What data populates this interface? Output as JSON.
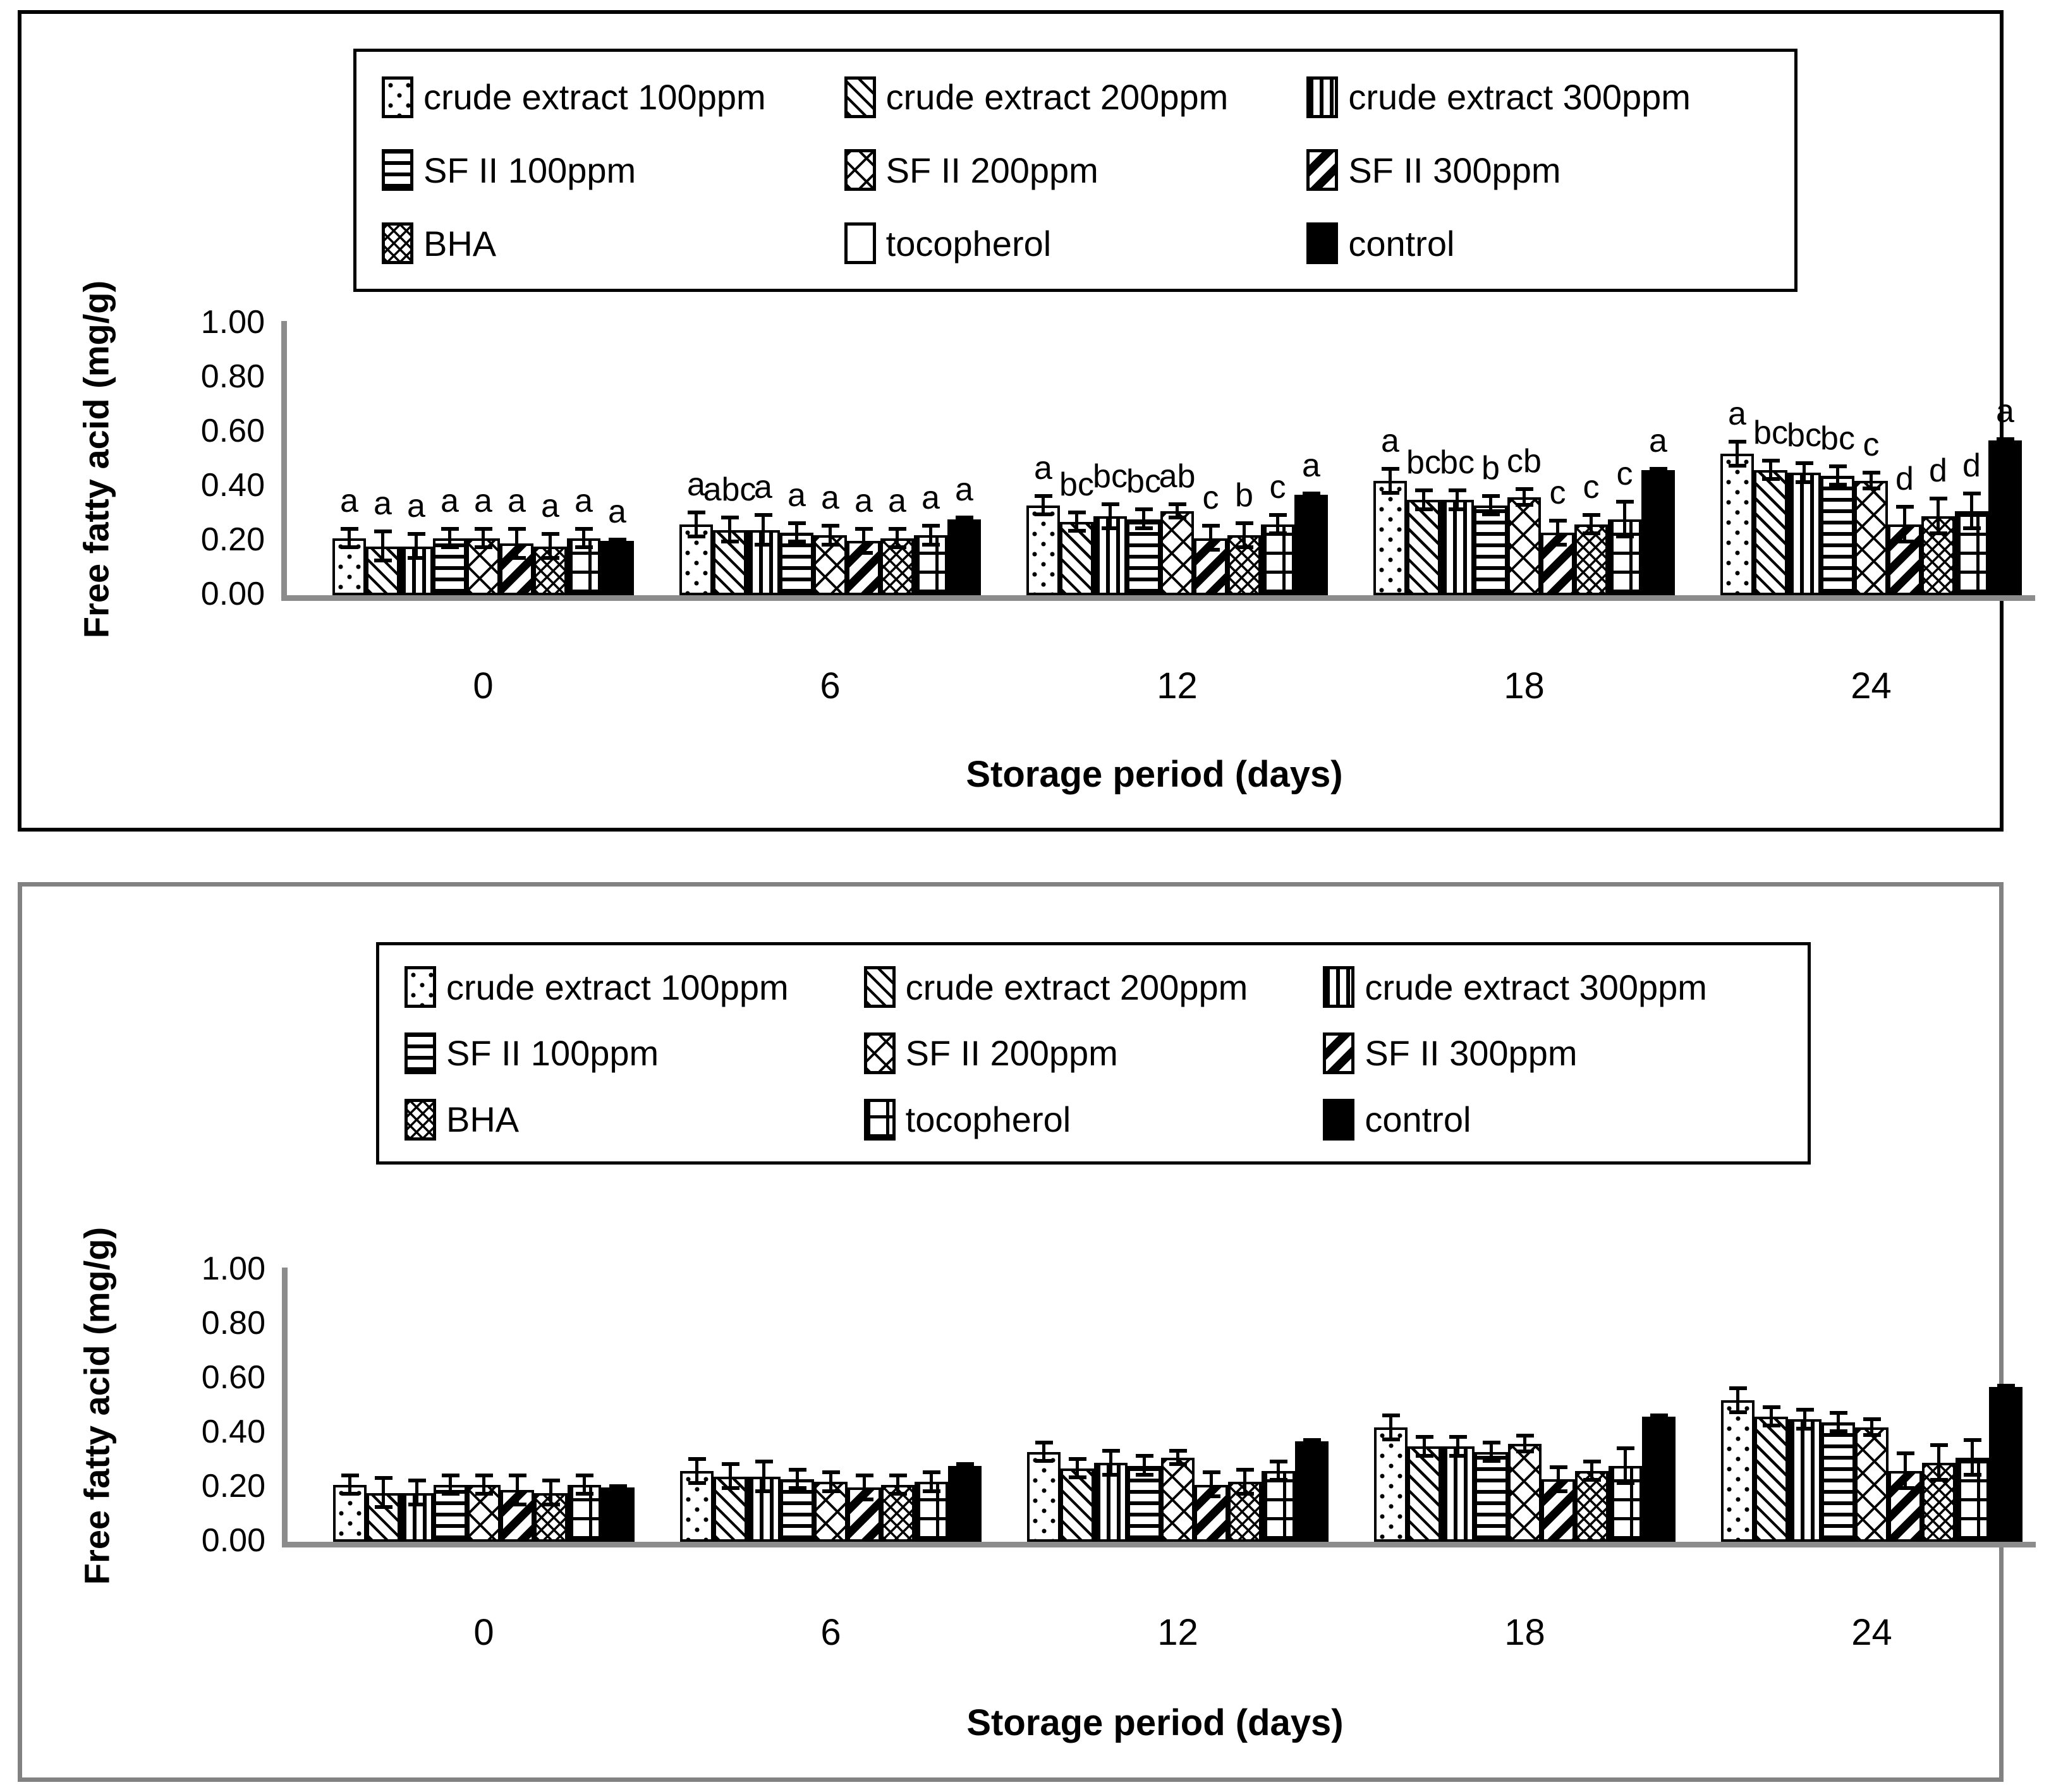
{
  "figure": {
    "description_visible_text_only": "Two stacked bar-chart panels of free fatty acid vs storage period",
    "accent_colors": {
      "bar_fill": "#000000",
      "axis_gray": "#8c8c8c",
      "panel2_border_gray": "#828282"
    }
  },
  "chart_data": [
    {
      "type": "bar",
      "panel": "top",
      "ylabel": "Free fatty acid (mg/g)",
      "xlabel": "Storage period (days)",
      "ylim": [
        0,
        1.0
      ],
      "yticks": [
        "0.00",
        "0.20",
        "0.40",
        "0.60",
        "0.80",
        "1.00"
      ],
      "categories": [
        "0",
        "6",
        "12",
        "18",
        "24"
      ],
      "grid": false,
      "legend_position": "top-inside-box",
      "significance_letters": true,
      "series": [
        {
          "name": "crude extract 100ppm",
          "pattern": "dots",
          "values": [
            0.21,
            0.26,
            0.33,
            0.42,
            0.52
          ],
          "errors": [
            0.04,
            0.05,
            0.04,
            0.05,
            0.05
          ],
          "letters": [
            "a",
            "a",
            "a",
            "a",
            "a"
          ]
        },
        {
          "name": "crude extract 200ppm",
          "pattern": "diag-down",
          "values": [
            0.18,
            0.24,
            0.27,
            0.35,
            0.46
          ],
          "errors": [
            0.06,
            0.05,
            0.04,
            0.04,
            0.04
          ],
          "letters": [
            "a",
            "abc",
            "bc",
            "bc",
            "bc"
          ]
        },
        {
          "name": "crude extract 300ppm",
          "pattern": "vertical",
          "values": [
            0.18,
            0.24,
            0.29,
            0.35,
            0.45
          ],
          "errors": [
            0.05,
            0.06,
            0.05,
            0.04,
            0.04
          ],
          "letters": [
            "a",
            "a",
            "bc",
            "bc",
            "bc"
          ]
        },
        {
          "name": "SF II 100ppm",
          "pattern": "horizontal",
          "values": [
            0.21,
            0.23,
            0.28,
            0.33,
            0.44
          ],
          "errors": [
            0.04,
            0.04,
            0.04,
            0.04,
            0.04
          ],
          "letters": [
            "a",
            "a",
            "bc",
            "b",
            "bc"
          ]
        },
        {
          "name": "SF II 200ppm",
          "pattern": "cross-wide",
          "values": [
            0.21,
            0.22,
            0.31,
            0.36,
            0.42
          ],
          "errors": [
            0.04,
            0.04,
            0.03,
            0.035,
            0.035
          ],
          "letters": [
            "a",
            "a",
            "ab",
            "cb",
            "c"
          ]
        },
        {
          "name": "SF II 300ppm",
          "pattern": "diag-bold",
          "values": [
            0.19,
            0.2,
            0.21,
            0.23,
            0.26
          ],
          "errors": [
            0.06,
            0.05,
            0.05,
            0.05,
            0.07
          ],
          "letters": [
            "a",
            "a",
            "c",
            "c",
            "d"
          ]
        },
        {
          "name": "BHA",
          "pattern": "cross-fine",
          "values": [
            0.18,
            0.21,
            0.22,
            0.26,
            0.29
          ],
          "errors": [
            0.05,
            0.04,
            0.05,
            0.04,
            0.07
          ],
          "letters": [
            "a",
            "a",
            "b",
            "c",
            "d"
          ]
        },
        {
          "name": "tocopherol",
          "pattern": "grid",
          "legend_pattern": "empty",
          "values": [
            0.21,
            0.22,
            0.26,
            0.28,
            0.31
          ],
          "errors": [
            0.04,
            0.04,
            0.04,
            0.07,
            0.07
          ],
          "letters": [
            "a",
            "a",
            "c",
            "c",
            "d"
          ]
        },
        {
          "name": "control",
          "pattern": "solid",
          "values": [
            0.2,
            0.28,
            0.37,
            0.46,
            0.57
          ],
          "errors": [
            0.01,
            0.01,
            0.01,
            0.01,
            0.01
          ],
          "letters": [
            "a",
            "a",
            "a",
            "a",
            "a"
          ]
        }
      ]
    },
    {
      "type": "bar",
      "panel": "bottom",
      "ylabel": "Free fatty acid (mg/g)",
      "xlabel": "Storage period (days)",
      "ylim": [
        0,
        1.0
      ],
      "yticks": [
        "0.00",
        "0.20",
        "0.40",
        "0.60",
        "0.80",
        "1.00"
      ],
      "categories": [
        "0",
        "6",
        "12",
        "18",
        "24"
      ],
      "grid": false,
      "legend_position": "top-inside-box",
      "significance_letters": false,
      "series": [
        {
          "name": "crude extract 100ppm",
          "pattern": "dots",
          "values": [
            0.21,
            0.26,
            0.33,
            0.42,
            0.52
          ],
          "errors": [
            0.04,
            0.05,
            0.04,
            0.05,
            0.05
          ]
        },
        {
          "name": "crude extract 200ppm",
          "pattern": "diag-down",
          "values": [
            0.18,
            0.24,
            0.27,
            0.35,
            0.46
          ],
          "errors": [
            0.06,
            0.05,
            0.04,
            0.04,
            0.04
          ]
        },
        {
          "name": "crude extract 300ppm",
          "pattern": "vertical",
          "values": [
            0.18,
            0.24,
            0.29,
            0.35,
            0.45
          ],
          "errors": [
            0.05,
            0.06,
            0.05,
            0.04,
            0.04
          ]
        },
        {
          "name": "SF II 100ppm",
          "pattern": "horizontal",
          "values": [
            0.21,
            0.23,
            0.28,
            0.33,
            0.44
          ],
          "errors": [
            0.04,
            0.04,
            0.04,
            0.04,
            0.04
          ]
        },
        {
          "name": "SF II 200ppm",
          "pattern": "cross-wide",
          "values": [
            0.21,
            0.22,
            0.31,
            0.36,
            0.42
          ],
          "errors": [
            0.04,
            0.04,
            0.03,
            0.035,
            0.035
          ]
        },
        {
          "name": "SF II 300ppm",
          "pattern": "diag-bold",
          "values": [
            0.19,
            0.2,
            0.21,
            0.23,
            0.26
          ],
          "errors": [
            0.06,
            0.05,
            0.05,
            0.05,
            0.07
          ]
        },
        {
          "name": "BHA",
          "pattern": "cross-fine",
          "values": [
            0.18,
            0.21,
            0.22,
            0.26,
            0.29
          ],
          "errors": [
            0.05,
            0.04,
            0.05,
            0.04,
            0.07
          ]
        },
        {
          "name": "tocopherol",
          "pattern": "grid",
          "values": [
            0.21,
            0.22,
            0.26,
            0.28,
            0.31
          ],
          "errors": [
            0.04,
            0.04,
            0.04,
            0.07,
            0.07
          ]
        },
        {
          "name": "control",
          "pattern": "solid",
          "values": [
            0.2,
            0.28,
            0.37,
            0.46,
            0.57
          ],
          "errors": [
            0.01,
            0.01,
            0.01,
            0.01,
            0.01
          ]
        }
      ]
    }
  ]
}
